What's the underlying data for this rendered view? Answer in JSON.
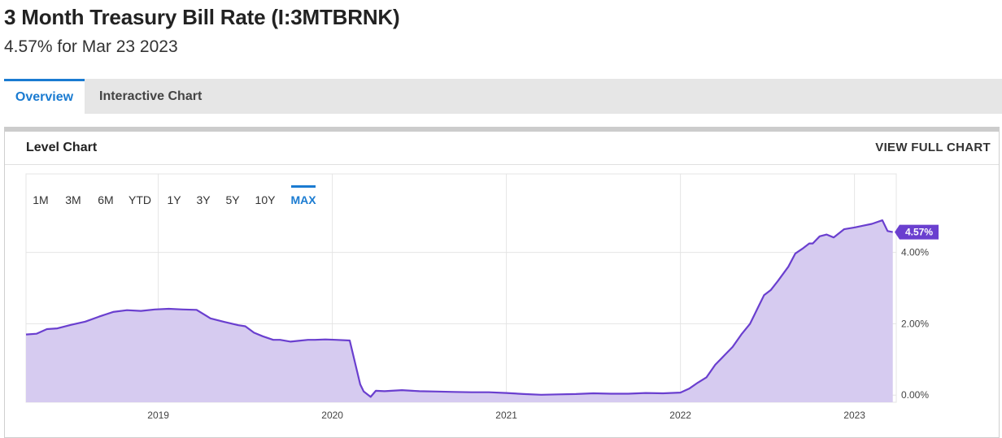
{
  "header": {
    "title": "3 Month Treasury Bill Rate (I:3MTBRNK)",
    "subtitle": "4.57% for Mar 23 2023"
  },
  "tabs": [
    {
      "label": "Overview",
      "active": true
    },
    {
      "label": "Interactive Chart",
      "active": false
    }
  ],
  "card": {
    "title": "Level Chart",
    "view_full": "VIEW FULL CHART"
  },
  "range_buttons": [
    {
      "label": "1M",
      "active": false
    },
    {
      "label": "3M",
      "active": false
    },
    {
      "label": "6M",
      "active": false
    },
    {
      "label": "YTD",
      "active": false
    },
    {
      "label": "1Y",
      "active": false
    },
    {
      "label": "3Y",
      "active": false
    },
    {
      "label": "5Y",
      "active": false
    },
    {
      "label": "10Y",
      "active": false
    },
    {
      "label": "MAX",
      "active": true
    }
  ],
  "colors": {
    "line": "#6a3fcf",
    "fill": "#d6cbf0",
    "badge": "#6a3fcf",
    "accent": "#1a7bd1",
    "grid": "#e4e4e4"
  },
  "chart_data": {
    "type": "area",
    "title": "",
    "xlabel": "",
    "ylabel": "",
    "x_ticks": [
      "2019",
      "2020",
      "2021",
      "2022",
      "2023"
    ],
    "y_ticks": [
      "0.00%",
      "2.00%",
      "4.00%"
    ],
    "ylim": [
      -0.2,
      6.2
    ],
    "last_value_label": "4.57%",
    "series": [
      {
        "x": [
          2018.24,
          2018.3,
          2018.36,
          2018.42,
          2018.5,
          2018.58,
          2018.66,
          2018.74,
          2018.82,
          2018.9,
          2018.98,
          2019.06,
          2019.14,
          2019.22,
          2019.3,
          2019.38,
          2019.46,
          2019.5,
          2019.55,
          2019.6,
          2019.66,
          2019.7,
          2019.76,
          2019.8,
          2019.86,
          2019.9,
          2019.96,
          2020.02,
          2020.1,
          2020.16,
          2020.18,
          2020.22,
          2020.25,
          2020.3,
          2020.4,
          2020.5,
          2020.6,
          2020.7,
          2020.8,
          2020.9,
          2021.0,
          2021.1,
          2021.2,
          2021.3,
          2021.4,
          2021.5,
          2021.6,
          2021.7,
          2021.8,
          2021.9,
          2022.0,
          2022.05,
          2022.1,
          2022.15,
          2022.2,
          2022.25,
          2022.3,
          2022.35,
          2022.4,
          2022.42,
          2022.45,
          2022.48,
          2022.52,
          2022.56,
          2022.62,
          2022.66,
          2022.7,
          2022.74,
          2022.76,
          2022.8,
          2022.84,
          2022.88,
          2022.94,
          2023.0,
          2023.05,
          2023.1,
          2023.16,
          2023.19,
          2023.22
        ],
        "values": [
          1.7,
          1.72,
          1.85,
          1.87,
          1.97,
          2.06,
          2.2,
          2.33,
          2.38,
          2.36,
          2.4,
          2.42,
          2.4,
          2.39,
          2.15,
          2.05,
          1.96,
          1.93,
          1.75,
          1.65,
          1.55,
          1.55,
          1.5,
          1.52,
          1.55,
          1.55,
          1.56,
          1.55,
          1.53,
          0.3,
          0.1,
          -0.05,
          0.12,
          0.11,
          0.14,
          0.11,
          0.1,
          0.09,
          0.08,
          0.08,
          0.06,
          0.03,
          0.01,
          0.02,
          0.03,
          0.05,
          0.04,
          0.04,
          0.06,
          0.05,
          0.07,
          0.18,
          0.35,
          0.5,
          0.85,
          1.1,
          1.35,
          1.7,
          2.0,
          2.2,
          2.5,
          2.8,
          2.95,
          3.2,
          3.6,
          3.97,
          4.1,
          4.25,
          4.25,
          4.45,
          4.5,
          4.42,
          4.65,
          4.7,
          4.75,
          4.8,
          4.9,
          4.6,
          4.57
        ]
      }
    ]
  }
}
